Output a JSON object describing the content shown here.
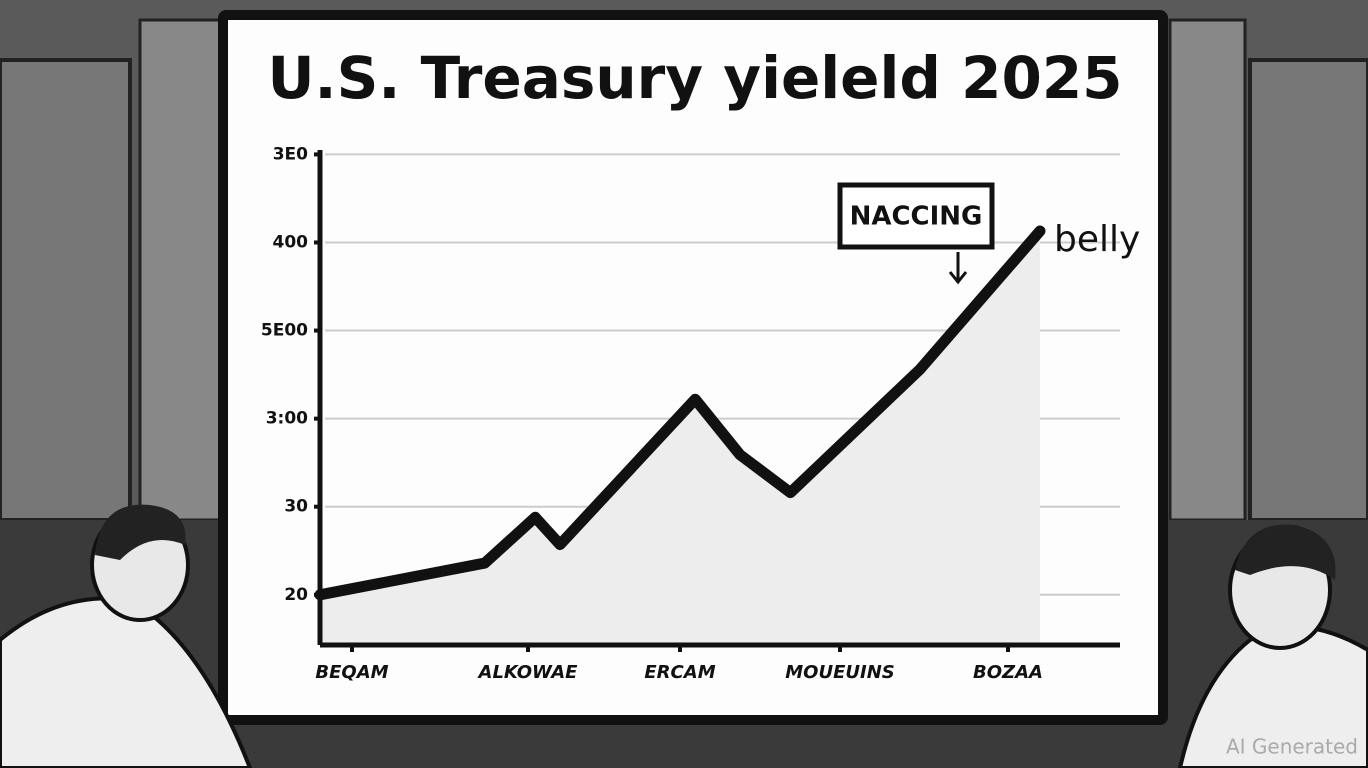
{
  "chart_data": {
    "type": "line",
    "title": "U.S. Treasury yieleld 2025",
    "x": [
      0,
      20.6,
      26.9,
      30,
      46.9,
      52.5,
      58.8,
      75,
      90
    ],
    "series": [
      {
        "name": "belly",
        "color": "#111111",
        "values": [
          0,
          0.36,
          0.88,
          0.57,
          2.22,
          1.59,
          1.16,
          2.56,
          4.13
        ]
      }
    ],
    "xlim": [
      0,
      100
    ],
    "xticks": [
      {
        "value": 4,
        "label": "BEQAM"
      },
      {
        "value": 26,
        "label": "ALKOWAE"
      },
      {
        "value": 45,
        "label": "ERCAM"
      },
      {
        "value": 65,
        "label": "MOUEUINS"
      },
      {
        "value": 86,
        "label": "BOZAA"
      }
    ],
    "ylim": [
      -0.57,
      5.05
    ],
    "yticks": [
      {
        "value": 0,
        "label": "20"
      },
      {
        "value": 1,
        "label": "30"
      },
      {
        "value": 2,
        "label": "3:00"
      },
      {
        "value": 3,
        "label": "5E00"
      },
      {
        "value": 4,
        "label": "400"
      },
      {
        "value": 5,
        "label": "3E0"
      }
    ],
    "grid": true,
    "annotations": [
      "NACCING"
    ],
    "watermark": "AI Generated"
  }
}
